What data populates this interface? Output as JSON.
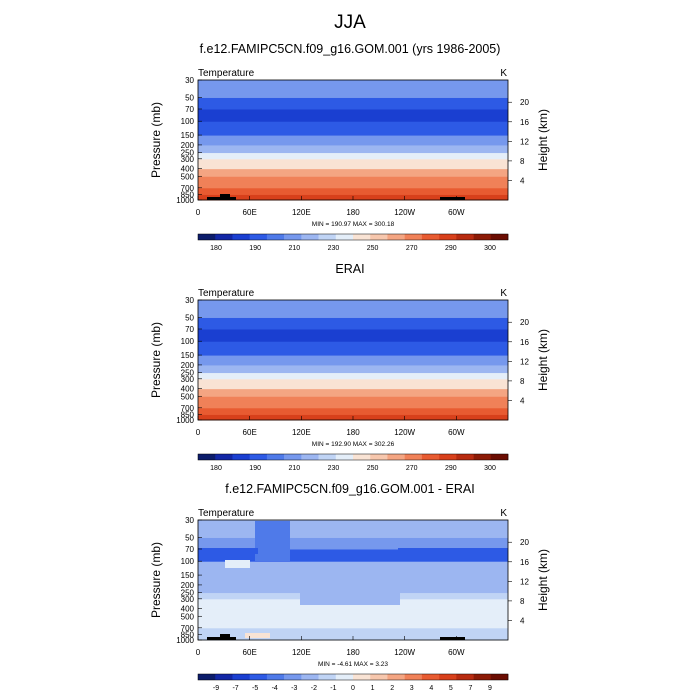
{
  "page": {
    "season_title": "JJA",
    "color_scales": {
      "abs": [
        "#0c1c6b",
        "#1227a6",
        "#1a3fd1",
        "#2d5ae5",
        "#4f7ae9",
        "#7698ed",
        "#9cb6f1",
        "#c0d4f5",
        "#e4eef9",
        "#f9e3d4",
        "#f7c7ad",
        "#f4a582",
        "#f08158",
        "#e85b31",
        "#d8401b",
        "#b82b10",
        "#8c1a06",
        "#6b0d02"
      ],
      "diff": [
        "#0c1c6b",
        "#1227a6",
        "#1a3fd1",
        "#2d5ae5",
        "#4f7ae9",
        "#7698ed",
        "#9cb6f1",
        "#c0d4f5",
        "#e4eef9",
        "#f9e3d4",
        "#f7c7ad",
        "#f4a582",
        "#f08158",
        "#e85b31",
        "#d8401b",
        "#b82b10",
        "#8c1a06",
        "#6b0d02"
      ]
    },
    "band_boundaries_mb": [
      1000,
      850,
      700,
      500,
      400,
      300,
      250,
      200,
      150,
      100,
      70,
      50,
      30
    ],
    "x_ticks": [
      "0",
      "60E",
      "120E",
      "180",
      "120W",
      "60W"
    ],
    "y_ticks": [
      "30",
      "50",
      "70",
      "100",
      "150",
      "200",
      "250",
      "300",
      "400",
      "500",
      "700",
      "850",
      "1000"
    ],
    "height_ticks": [
      "4",
      "8",
      "12",
      "16",
      "20"
    ],
    "y_axis_title": "Pressure (mb)",
    "right_axis_title": "Height (km)"
  },
  "chart_data": [
    {
      "type": "heatmap",
      "id": "model",
      "title": "f.e12.FAMIPC5CN.f09_g16.GOM.001 (yrs 1986-2005)",
      "left_label": "Temperature",
      "units": "K",
      "stats": "MIN = 190.97  MAX = 300.18",
      "min": 190.97,
      "max": 300.18,
      "scale": "abs",
      "colorbar_ticks": [
        "180",
        "190",
        "210",
        "230",
        "250",
        "270",
        "290",
        "300"
      ],
      "band_color_index": [
        14,
        13,
        12,
        11,
        9,
        8,
        6,
        5,
        3,
        2,
        3,
        5
      ]
    },
    {
      "type": "heatmap",
      "id": "erai",
      "title": "ERAI",
      "left_label": "Temperature",
      "units": "K",
      "stats": "MIN = 192.90  MAX = 302.26",
      "min": 192.9,
      "max": 302.26,
      "scale": "abs",
      "colorbar_ticks": [
        "180",
        "190",
        "210",
        "230",
        "250",
        "270",
        "290",
        "300"
      ],
      "band_color_index": [
        14,
        13,
        12,
        11,
        9,
        8,
        6,
        5,
        3,
        2,
        3,
        5
      ]
    },
    {
      "type": "heatmap",
      "id": "diff",
      "title": "f.e12.FAMIPC5CN.f09_g16.GOM.001 - ERAI",
      "left_label": "Temperature",
      "units": "K",
      "stats": "MIN =  -4.61  MAX =   3.23",
      "min": -4.61,
      "max": 3.23,
      "scale": "diff",
      "colorbar_ticks": [
        "-9",
        "-7",
        "-5",
        "-4",
        "-3",
        "-2",
        "-1",
        "0",
        "1",
        "2",
        "3",
        "4",
        "5",
        "7",
        "9"
      ],
      "band_color_index": [
        7,
        7,
        8,
        8,
        8,
        7,
        6,
        6,
        6,
        3,
        5,
        6
      ]
    }
  ]
}
